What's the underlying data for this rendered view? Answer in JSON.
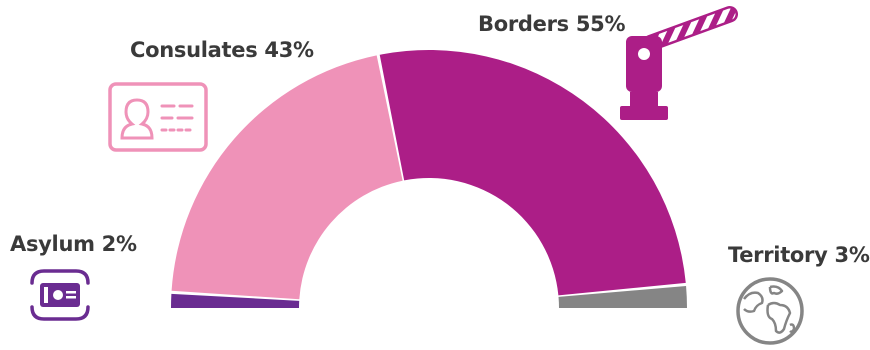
{
  "chart_data": {
    "type": "pie",
    "variant": "semi-donut",
    "categories": [
      "Asylum",
      "Consulates",
      "Borders",
      "Territory"
    ],
    "values": [
      2,
      43,
      55,
      3
    ],
    "labels": [
      "Asylum 2%",
      "Consulates 43%",
      "Borders 55%",
      "Territory 3%"
    ],
    "unit": "%",
    "colors": [
      "#6a2c91",
      "#ef92b8",
      "#ac1e87",
      "#858585"
    ],
    "icons": [
      "asylum-hands-id-icon",
      "id-card-icon",
      "border-barrier-icon",
      "globe-icon"
    ]
  }
}
